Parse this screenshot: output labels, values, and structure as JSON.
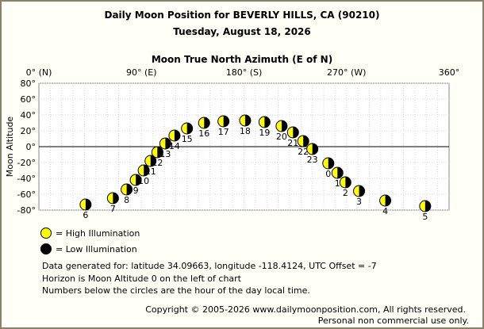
{
  "header": {
    "title": "Daily Moon Position for BEVERLY HILLS, CA (90210)",
    "subtitle": "Tuesday, August 18, 2026"
  },
  "legend": {
    "high": "= High Illumination",
    "low": "= Low Illumination",
    "high_color": "#ffff00",
    "low_color": "#000000"
  },
  "info": {
    "line1": "Data generated for: latitude 34.09663, longitude -118.4124, UTC Offset = -7",
    "line2": "Horizon is Moon Altitude 0 on the left of chart",
    "line3": "Numbers below the circles are the hour of the day local time."
  },
  "footer": {
    "copyright": "Copyright © 2005-2026 www.dailymoonposition.com, All rights reserved.",
    "license": "Personal non commercial use only."
  },
  "chart_data": {
    "type": "scatter",
    "title": "Moon True North Azimuth (E of N)",
    "xlabel": "Moon True North Azimuth (E of N)",
    "ylabel": "Moon Altitude",
    "xlim": [
      0,
      360
    ],
    "ylim": [
      -80,
      80
    ],
    "x_ticks": [
      {
        "value": 0,
        "label": "0° (N)"
      },
      {
        "value": 90,
        "label": "90° (E)"
      },
      {
        "value": 180,
        "label": "180° (S)"
      },
      {
        "value": 270,
        "label": "270° (W)"
      },
      {
        "value": 360,
        "label": "360°"
      }
    ],
    "y_ticks": [
      {
        "value": 80,
        "label": "80°"
      },
      {
        "value": 60,
        "label": "60°"
      },
      {
        "value": 40,
        "label": "40°"
      },
      {
        "value": 20,
        "label": "20°"
      },
      {
        "value": 0,
        "label": "0°"
      },
      {
        "value": -20,
        "label": "-20°"
      },
      {
        "value": -40,
        "label": "-40°"
      },
      {
        "value": -60,
        "label": "-60°"
      },
      {
        "value": -80,
        "label": "-80°"
      }
    ],
    "horizon": 0,
    "grid": true,
    "points": [
      {
        "hour": "6",
        "azimuth": 41,
        "altitude": -73
      },
      {
        "hour": "7",
        "azimuth": 65,
        "altitude": -65
      },
      {
        "hour": "8",
        "azimuth": 77,
        "altitude": -54
      },
      {
        "hour": "9",
        "azimuth": 85,
        "altitude": -42
      },
      {
        "hour": "10",
        "azimuth": 92,
        "altitude": -30
      },
      {
        "hour": "11",
        "azimuth": 98,
        "altitude": -18
      },
      {
        "hour": "12",
        "azimuth": 104,
        "altitude": -7
      },
      {
        "hour": "13",
        "azimuth": 111,
        "altitude": 4
      },
      {
        "hour": "14",
        "azimuth": 119,
        "altitude": 14
      },
      {
        "hour": "15",
        "azimuth": 130,
        "altitude": 23
      },
      {
        "hour": "16",
        "azimuth": 145,
        "altitude": 30
      },
      {
        "hour": "17",
        "azimuth": 162,
        "altitude": 32
      },
      {
        "hour": "18",
        "azimuth": 181,
        "altitude": 33
      },
      {
        "hour": "19",
        "azimuth": 198,
        "altitude": 31
      },
      {
        "hour": "20",
        "azimuth": 213,
        "altitude": 26
      },
      {
        "hour": "21",
        "azimuth": 223,
        "altitude": 18
      },
      {
        "hour": "22",
        "azimuth": 232,
        "altitude": 7
      },
      {
        "hour": "23",
        "azimuth": 240,
        "altitude": -3
      },
      {
        "hour": "0",
        "azimuth": 254,
        "altitude": -21
      },
      {
        "hour": "1",
        "azimuth": 262,
        "altitude": -33
      },
      {
        "hour": "2",
        "azimuth": 269,
        "altitude": -45
      },
      {
        "hour": "3",
        "azimuth": 281,
        "altitude": -56
      },
      {
        "hour": "4",
        "azimuth": 304,
        "altitude": -68
      },
      {
        "hour": "5",
        "azimuth": 339,
        "altitude": -75
      }
    ]
  }
}
